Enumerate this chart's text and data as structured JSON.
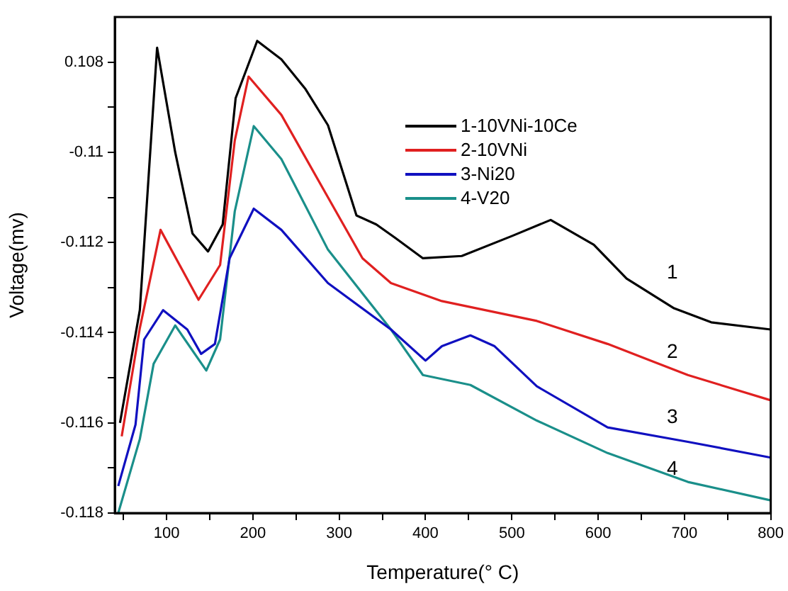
{
  "chart_data": {
    "type": "line",
    "xlabel": "Temperature(° C)",
    "ylabel": "Voltage(mv)",
    "xlim": [
      40,
      800
    ],
    "xticks": [
      {
        "value": 50,
        "label": null
      },
      100,
      {
        "value": 150,
        "label": null
      },
      200,
      {
        "value": 250,
        "label": null
      },
      300,
      {
        "value": 350,
        "label": null
      },
      400,
      {
        "value": 450,
        "label": null
      },
      500,
      {
        "value": 550,
        "label": null
      },
      600,
      {
        "value": 650,
        "label": null
      },
      700,
      {
        "value": 750,
        "label": null
      },
      800
    ],
    "ylim": [
      -0.118,
      -0.107
    ],
    "yticks": [
      -0.118,
      {
        "value": -0.117,
        "label": null
      },
      -0.116,
      {
        "value": -0.115,
        "label": null
      },
      -0.114,
      {
        "value": -0.113,
        "label": null
      },
      -0.112,
      {
        "value": -0.111,
        "label": null
      },
      -0.11,
      {
        "value": -0.109,
        "label": null
      },
      {
        "value": -0.108,
        "label": "0.108"
      }
    ],
    "grid": false,
    "legend": "top right",
    "marker": "none",
    "line_style": "solid",
    "series": [
      {
        "name": "1-10VNi-10Ce",
        "color": "#000000",
        "x": [
          46,
          69,
          89,
          110,
          130,
          148,
          165,
          180,
          205,
          233,
          261,
          287,
          320,
          343,
          365,
          397,
          442,
          501,
          545,
          595,
          633,
          688,
          731,
          800
        ],
        "values": [
          -0.116,
          -0.1135,
          -0.10768,
          -0.11,
          -0.1118,
          -0.1122,
          -0.1116,
          -0.1088,
          -0.10753,
          -0.10794,
          -0.1086,
          -0.1094,
          -0.1114,
          -0.1116,
          -0.1119,
          -0.11235,
          -0.1123,
          -0.11185,
          -0.1115,
          -0.11205,
          -0.1128,
          -0.11346,
          -0.11377,
          -0.11393
        ]
      },
      {
        "name": "2-10VNi",
        "color": "#e02020",
        "x": [
          48,
          69,
          93,
          137,
          162,
          179,
          195,
          233,
          287,
          327,
          360,
          419,
          529,
          611,
          704,
          800
        ],
        "values": [
          -0.1163,
          -0.1139,
          -0.11172,
          -0.11327,
          -0.1125,
          -0.10974,
          -0.10832,
          -0.10917,
          -0.111,
          -0.11235,
          -0.1129,
          -0.1133,
          -0.11374,
          -0.11425,
          -0.11494,
          -0.1155
        ]
      },
      {
        "name": "3-Ni20",
        "color": "#1010c0",
        "x": [
          44,
          64,
          74,
          96,
          124,
          140,
          156,
          173,
          201,
          233,
          287,
          360,
          400,
          419,
          452,
          480,
          529,
          611,
          704,
          800
        ],
        "values": [
          -0.1174,
          -0.11604,
          -0.11415,
          -0.1135,
          -0.11393,
          -0.11447,
          -0.11425,
          -0.11235,
          -0.11125,
          -0.11172,
          -0.1129,
          -0.11393,
          -0.11462,
          -0.1143,
          -0.11406,
          -0.1143,
          -0.11519,
          -0.1161,
          -0.11642,
          -0.11677
        ]
      },
      {
        "name": "4-V20",
        "color": "#1a8f8a",
        "x": [
          44,
          69,
          85,
          110,
          146,
          162,
          179,
          201,
          233,
          287,
          360,
          397,
          452,
          529,
          611,
          704,
          800
        ],
        "values": [
          -0.118,
          -0.11636,
          -0.11469,
          -0.11384,
          -0.11484,
          -0.11415,
          -0.11131,
          -0.10942,
          -0.11015,
          -0.11216,
          -0.11393,
          -0.11494,
          -0.11516,
          -0.11595,
          -0.11667,
          -0.11731,
          -0.11772
        ]
      }
    ],
    "annotations": [
      "1",
      "2",
      "3",
      "4"
    ]
  }
}
